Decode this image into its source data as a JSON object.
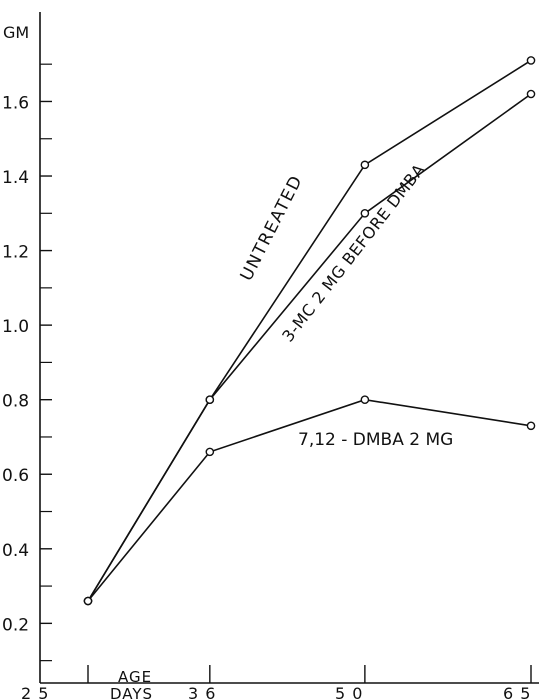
{
  "chart_data": {
    "type": "line",
    "ylabel": "GM",
    "xlabel": "AGE DAYS",
    "x": [
      25,
      36,
      50,
      65
    ],
    "x_tick_labels": [
      "2 5",
      "3 6",
      "5 0",
      "6 5"
    ],
    "ylim": [
      0.04,
      1.84
    ],
    "y_ticks": [
      0.2,
      0.4,
      0.6,
      0.8,
      1.0,
      1.2,
      1.4,
      1.6
    ],
    "y_tick_labels": [
      "0.2",
      "0.4",
      "0.6",
      "0.8",
      "1.0",
      "1.2",
      "1.4",
      "1.6"
    ],
    "grid": false,
    "legend": "none (series labelled directly on the lines)",
    "series": [
      {
        "name": "UNTREATED",
        "values": [
          0.26,
          0.8,
          1.43,
          1.71
        ]
      },
      {
        "name": "3-MC 2 MG BEFORE DMBA",
        "values": [
          0.26,
          0.8,
          1.3,
          1.62
        ]
      },
      {
        "name": "7,12 - DMBA 2 MG",
        "values": [
          0.26,
          0.66,
          0.8,
          0.73
        ]
      }
    ],
    "colors": {
      "ink": "#111111",
      "background": "#ffffff"
    }
  }
}
